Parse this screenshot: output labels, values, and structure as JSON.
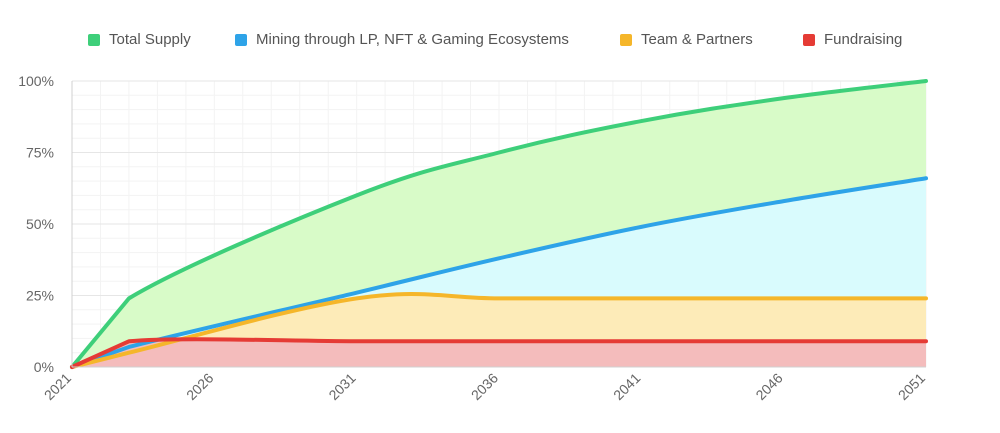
{
  "chart_data": {
    "type": "area",
    "x": [
      2021,
      2023,
      2031,
      2036,
      2041,
      2046,
      2051
    ],
    "x_ticks": [
      "2021",
      "2026",
      "2031",
      "2036",
      "2041",
      "2046",
      "2051"
    ],
    "y_ticks": [
      "0%",
      "25%",
      "50%",
      "75%",
      "100%"
    ],
    "xlim": [
      2021,
      2051
    ],
    "ylim": [
      0,
      100
    ],
    "grid": true,
    "legend_position": "top",
    "series": [
      {
        "name": "Total Supply",
        "color": "#3ecf7a",
        "fill": "#d8fbc8",
        "values": [
          0,
          24,
          60,
          75,
          86,
          94,
          100
        ]
      },
      {
        "name": "Mining through LP, NFT & Gaming Ecosystems",
        "color": "#2ea3e8",
        "fill": "#d9fbfd",
        "values": [
          0,
          7,
          26,
          38,
          49,
          58,
          66
        ]
      },
      {
        "name": "Team & Partners",
        "color": "#f5b62a",
        "fill": "#fdebb8",
        "values": [
          0,
          5,
          24,
          24,
          24,
          24,
          24
        ]
      },
      {
        "name": "Fundraising",
        "color": "#e53b35",
        "fill": "#f4bcbc",
        "values": [
          0,
          9,
          9,
          9,
          9,
          9,
          9
        ]
      }
    ]
  }
}
